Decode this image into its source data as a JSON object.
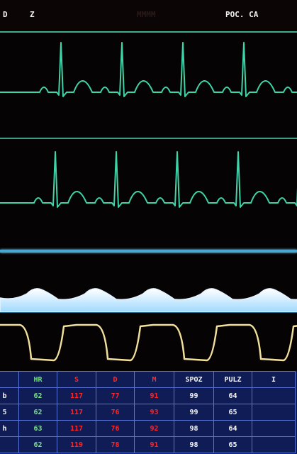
{
  "monitor": {
    "top_left_label": "D",
    "top_num_label": "Z",
    "top_faint_label": "MMMM",
    "top_right_label": "POC. CA"
  },
  "vitals_table": {
    "headers": [
      "",
      "HR",
      "S",
      "D",
      "M",
      "SPOZ",
      "PULZ",
      "I"
    ],
    "rows": [
      [
        "b",
        "62",
        "117",
        "77",
        "91",
        "99",
        "64",
        ""
      ],
      [
        "5",
        "62",
        "117",
        "76",
        "93",
        "99",
        "65",
        ""
      ],
      [
        "h",
        "63",
        "117",
        "76",
        "92",
        "98",
        "64",
        ""
      ],
      [
        "",
        "62",
        "119",
        "78",
        "91",
        "98",
        "65",
        ""
      ]
    ]
  },
  "colors": {
    "ecg_trace": "#3fd4a8",
    "pleth_trace": "#e8f4ff",
    "co2_trace": "#f1df9a",
    "table_bg": "#0f1c55",
    "hr_color": "#6ee07a",
    "bp_color": "#ff2a2a",
    "spo2_color": "#f5f5f5"
  }
}
